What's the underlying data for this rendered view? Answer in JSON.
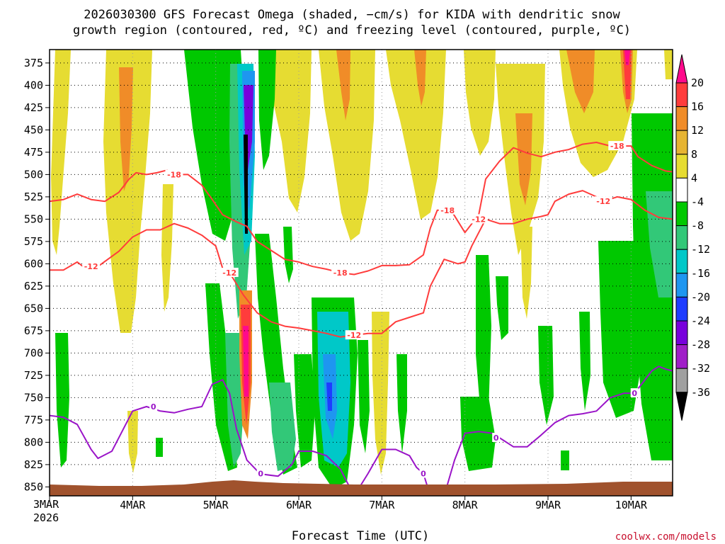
{
  "chart_data": {
    "type": "heatmap",
    "title_line1": "2026030300 GFS Forecast Omega (shaded, −cm/s) for KIDA with dendritic snow",
    "title_line2": "growth region (contoured, red, ºC) and freezing level (contoured, purple, ºC)",
    "xlabel": "Forecast Time (UTC)",
    "ylabel": "",
    "credit": "coolwx.com/models",
    "x_first_label": "3MAR",
    "x_first_year": "2026",
    "x_range_hours": [
      0,
      180
    ],
    "x_ticks": [
      {
        "hour": 24,
        "label": "4MAR"
      },
      {
        "hour": 48,
        "label": "5MAR"
      },
      {
        "hour": 72,
        "label": "6MAR"
      },
      {
        "hour": 96,
        "label": "7MAR"
      },
      {
        "hour": 120,
        "label": "8MAR"
      },
      {
        "hour": 144,
        "label": "9MAR"
      },
      {
        "hour": 168,
        "label": "10MAR"
      }
    ],
    "y_range_hpa": [
      860,
      360
    ],
    "y_ticks": [
      375,
      400,
      425,
      450,
      475,
      500,
      525,
      550,
      575,
      600,
      625,
      650,
      675,
      700,
      725,
      750,
      775,
      800,
      825,
      850
    ],
    "grid": true,
    "colorbar": {
      "levels": [
        20,
        16,
        12,
        8,
        4,
        -4,
        -8,
        -12,
        -16,
        -20,
        -24,
        -28,
        -32,
        -36
      ],
      "colors": [
        "#ff0a8c",
        "#ff3c3c",
        "#f08c28",
        "#e6b432",
        "#e6dc32",
        "#ffffff",
        "#00c800",
        "#32c878",
        "#00c8c8",
        "#1e96f0",
        "#1e3cff",
        "#7800dc",
        "#a01ec8",
        "#a0a0a0",
        "#000000"
      ]
    },
    "series": [
      {
        "name": "-18 C isotherm",
        "color": "#ff3c3c",
        "label": "-18",
        "label_at": [
          [
            36,
            500
          ],
          [
            115,
            540
          ],
          [
            84,
            610
          ],
          [
            164,
            468
          ]
        ],
        "points": [
          [
            0,
            530
          ],
          [
            4,
            528
          ],
          [
            8,
            522
          ],
          [
            12,
            528
          ],
          [
            16,
            530
          ],
          [
            20,
            520
          ],
          [
            23,
            505
          ],
          [
            25,
            498
          ],
          [
            28,
            500
          ],
          [
            31,
            498
          ],
          [
            34,
            495
          ],
          [
            36,
            500
          ],
          [
            40,
            500
          ],
          [
            44,
            512
          ],
          [
            47,
            528
          ],
          [
            50,
            545
          ],
          [
            54,
            553
          ],
          [
            57,
            558
          ],
          [
            60,
            575
          ],
          [
            64,
            585
          ],
          [
            68,
            595
          ],
          [
            72,
            598
          ],
          [
            76,
            603
          ],
          [
            80,
            606
          ],
          [
            84,
            610
          ],
          [
            88,
            612
          ],
          [
            92,
            608
          ],
          [
            96,
            602
          ],
          [
            100,
            602
          ],
          [
            104,
            601
          ],
          [
            108,
            590
          ],
          [
            110,
            560
          ],
          [
            112,
            540
          ],
          [
            116,
            540
          ],
          [
            120,
            565
          ],
          [
            124,
            545
          ],
          [
            126,
            505
          ],
          [
            130,
            485
          ],
          [
            134,
            470
          ],
          [
            138,
            476
          ],
          [
            142,
            480
          ],
          [
            146,
            475
          ],
          [
            150,
            472
          ],
          [
            154,
            466
          ],
          [
            158,
            464
          ],
          [
            162,
            468
          ],
          [
            164,
            468
          ],
          [
            168,
            468
          ],
          [
            170,
            480
          ],
          [
            174,
            490
          ],
          [
            178,
            496
          ],
          [
            180,
            497
          ]
        ]
      },
      {
        "name": "-12 C isotherm",
        "color": "#ff3c3c",
        "label": "-12",
        "label_at": [
          [
            12,
            603
          ],
          [
            52,
            610
          ],
          [
            88,
            680
          ],
          [
            124,
            550
          ],
          [
            160,
            530
          ]
        ],
        "points": [
          [
            0,
            607
          ],
          [
            4,
            607
          ],
          [
            8,
            598
          ],
          [
            10,
            604
          ],
          [
            14,
            603
          ],
          [
            20,
            586
          ],
          [
            24,
            570
          ],
          [
            28,
            562
          ],
          [
            32,
            562
          ],
          [
            36,
            555
          ],
          [
            40,
            560
          ],
          [
            44,
            568
          ],
          [
            48,
            580
          ],
          [
            50,
            605
          ],
          [
            52,
            610
          ],
          [
            56,
            635
          ],
          [
            60,
            655
          ],
          [
            64,
            665
          ],
          [
            68,
            670
          ],
          [
            72,
            672
          ],
          [
            76,
            675
          ],
          [
            80,
            678
          ],
          [
            84,
            682
          ],
          [
            88,
            680
          ],
          [
            92,
            678
          ],
          [
            96,
            678
          ],
          [
            100,
            665
          ],
          [
            104,
            660
          ],
          [
            108,
            655
          ],
          [
            110,
            625
          ],
          [
            114,
            595
          ],
          [
            118,
            600
          ],
          [
            120,
            598
          ],
          [
            122,
            580
          ],
          [
            126,
            550
          ],
          [
            130,
            555
          ],
          [
            134,
            555
          ],
          [
            138,
            550
          ],
          [
            142,
            547
          ],
          [
            144,
            545
          ],
          [
            146,
            530
          ],
          [
            150,
            522
          ],
          [
            154,
            518
          ],
          [
            158,
            525
          ],
          [
            160,
            530
          ],
          [
            164,
            525
          ],
          [
            168,
            528
          ],
          [
            172,
            540
          ],
          [
            176,
            548
          ],
          [
            180,
            550
          ]
        ]
      },
      {
        "name": "0 C freezing level",
        "color": "#9a14c8",
        "label": "0",
        "label_at": [
          [
            30,
            760
          ],
          [
            61,
            835
          ],
          [
            108,
            835
          ],
          [
            129,
            795
          ],
          [
            169,
            745
          ]
        ],
        "points": [
          [
            0,
            770
          ],
          [
            4,
            772
          ],
          [
            8,
            780
          ],
          [
            12,
            808
          ],
          [
            14,
            818
          ],
          [
            18,
            810
          ],
          [
            20,
            795
          ],
          [
            24,
            765
          ],
          [
            28,
            760
          ],
          [
            32,
            765
          ],
          [
            36,
            767
          ],
          [
            40,
            763
          ],
          [
            44,
            760
          ],
          [
            47,
            735
          ],
          [
            50,
            730
          ],
          [
            52,
            745
          ],
          [
            54,
            785
          ],
          [
            57,
            820
          ],
          [
            60,
            832
          ],
          [
            62,
            836
          ],
          [
            66,
            838
          ],
          [
            70,
            825
          ],
          [
            72,
            810
          ],
          [
            76,
            810
          ],
          [
            80,
            815
          ],
          [
            84,
            830
          ],
          [
            86,
            845
          ],
          [
            88,
            860
          ]
        ]
      },
      {
        "name": "0 C freezing level (later)",
        "color": "#9a14c8",
        "label": "",
        "label_at": [],
        "points": [
          [
            88,
            860
          ],
          [
            92,
            835
          ],
          [
            96,
            808
          ],
          [
            100,
            808
          ],
          [
            104,
            815
          ],
          [
            106,
            828
          ],
          [
            108,
            835
          ],
          [
            110,
            860
          ]
        ]
      },
      {
        "name": "0 C freezing level (8-10 Mar)",
        "color": "#9a14c8",
        "label": "",
        "label_at": [],
        "points": [
          [
            114,
            860
          ],
          [
            117,
            820
          ],
          [
            120,
            790
          ],
          [
            124,
            788
          ],
          [
            128,
            790
          ],
          [
            130,
            795
          ],
          [
            134,
            805
          ],
          [
            138,
            805
          ],
          [
            142,
            792
          ],
          [
            146,
            778
          ],
          [
            150,
            770
          ],
          [
            154,
            768
          ],
          [
            158,
            765
          ],
          [
            162,
            750
          ],
          [
            166,
            745
          ],
          [
            169,
            745
          ],
          [
            172,
            730
          ],
          [
            174,
            720
          ],
          [
            176,
            715
          ],
          [
            178,
            718
          ],
          [
            180,
            720
          ]
        ]
      }
    ]
  }
}
